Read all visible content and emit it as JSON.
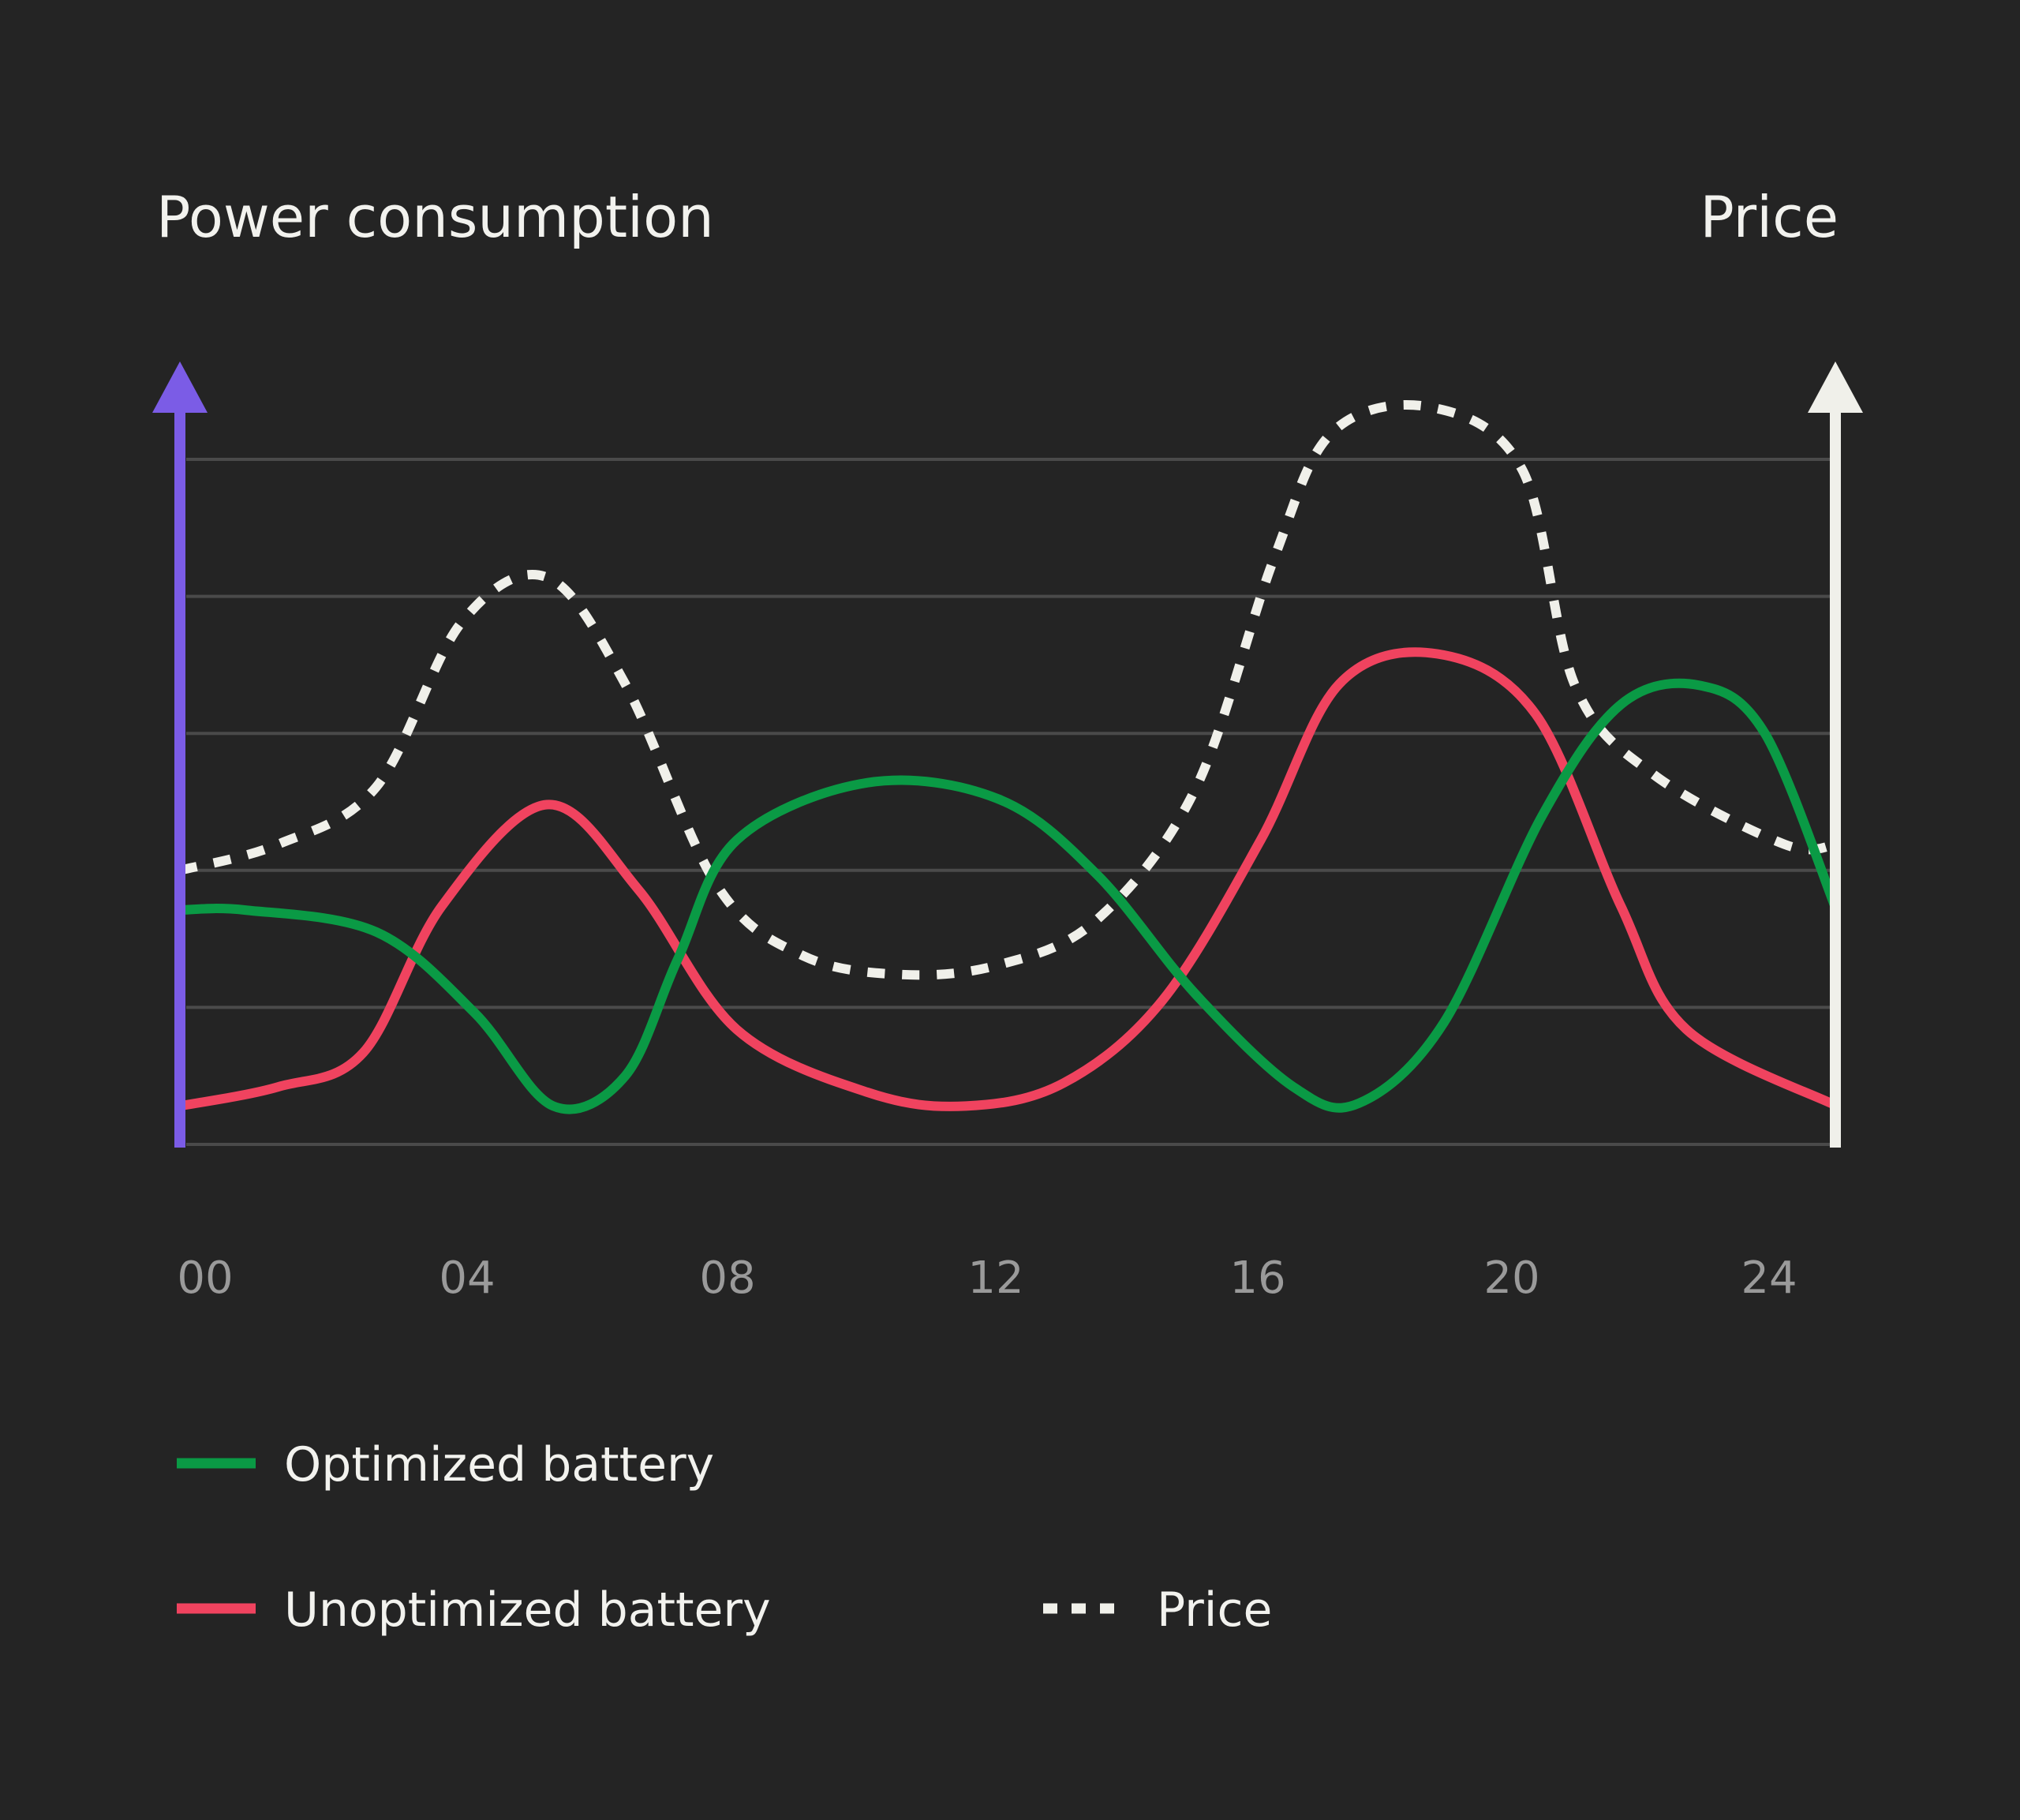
{
  "chart_data": {
    "type": "line",
    "left_axis_label": "Power consumption",
    "right_axis_label": "Price",
    "x_ticks": [
      "00",
      "04",
      "08",
      "12",
      "16",
      "20",
      "24"
    ],
    "x_range": [
      0,
      25.3
    ],
    "y_range": [
      0,
      5
    ],
    "grid": true,
    "legend_position": "bottom-left",
    "colors": {
      "background": "#242424",
      "grid": "#4a4a4a",
      "left_axis": "#7b5ce6",
      "right_axis": "#f0f0ea",
      "optimized": "#0a9a45",
      "unoptimized": "#f0435f",
      "price": "#f0f0ea",
      "tick_text": "#9a9a9a",
      "label_text": "#f2f2ee"
    },
    "series": [
      {
        "name": "Optimized battery",
        "style": "solid",
        "color": "#0a9a45",
        "x": [
          0,
          1,
          3,
          4.5,
          5.7,
          6.8,
          7.6,
          8.5,
          10.5,
          12.5,
          14,
          15.5,
          17,
          18,
          19.3,
          20.8,
          22,
          23.2,
          24.2,
          25.3
        ],
        "y": [
          1.71,
          1.71,
          1.55,
          0.96,
          0.28,
          0.5,
          1.35,
          2.22,
          2.64,
          2.52,
          1.97,
          1.1,
          0.42,
          0.3,
          0.89,
          2.4,
          3.21,
          3.35,
          3.0,
          1.7
        ]
      },
      {
        "name": "Unoptimized battery",
        "style": "solid",
        "color": "#f0435f",
        "x": [
          0,
          1.5,
          2.8,
          4,
          5.6,
          7,
          8.5,
          10.5,
          12,
          13.5,
          15,
          16.5,
          17.7,
          19.2,
          20.7,
          22,
          23,
          25.3
        ],
        "y": [
          0.28,
          0.42,
          0.67,
          1.74,
          2.48,
          1.86,
          0.84,
          0.38,
          0.28,
          0.45,
          1.05,
          2.22,
          3.36,
          3.58,
          3.14,
          1.74,
          0.84,
          0.28
        ]
      },
      {
        "name": "Price",
        "style": "dotted",
        "color": "#f0f0ea",
        "x": [
          0,
          1.5,
          3,
          4.3,
          5.6,
          6.8,
          8.2,
          9.5,
          11,
          12.5,
          14,
          15.5,
          16.7,
          17.6,
          19.1,
          20.5,
          21.3,
          22.5,
          24.5,
          25.3
        ],
        "y": [
          2.0,
          2.19,
          2.61,
          3.81,
          4.14,
          3.36,
          1.89,
          1.38,
          1.24,
          1.31,
          1.64,
          2.59,
          4.27,
          5.2,
          5.38,
          4.92,
          3.35,
          2.7,
          2.19,
          2.19
        ]
      }
    ]
  }
}
